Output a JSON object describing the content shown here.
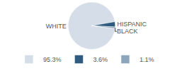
{
  "chart_data": {
    "type": "pie",
    "categories": [
      "WHITE",
      "HISPANIC",
      "BLACK"
    ],
    "values": [
      95.3,
      3.6,
      1.1
    ],
    "value_labels": [
      "95.3%",
      "3.6%",
      "1.1%"
    ],
    "colors": [
      "#d5dee8",
      "#2f5b80",
      "#8da6bb"
    ],
    "legend": "bottom"
  }
}
